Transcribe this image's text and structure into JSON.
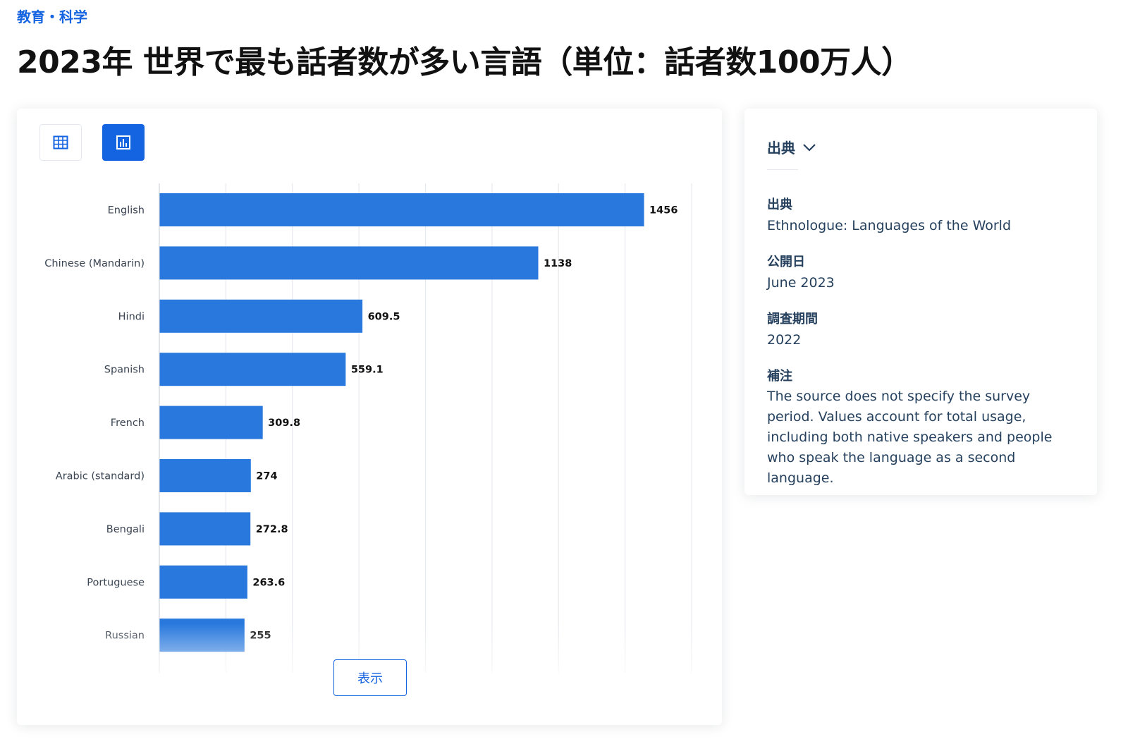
{
  "breadcrumb": {
    "category": "教育・科学"
  },
  "page": {
    "title": "2023年 世界で最も話者数が多い言語（単位：話者数100万人）"
  },
  "view_toggle": {
    "table_icon": "table-grid-icon",
    "chart_icon": "bar-chart-icon",
    "active": "chart"
  },
  "chart_data": {
    "type": "bar",
    "orientation": "horizontal",
    "categories": [
      "English",
      "Chinese (Mandarin)",
      "Hindi",
      "Spanish",
      "French",
      "Arabic (standard)",
      "Bengali",
      "Portuguese",
      "Russian"
    ],
    "values": [
      1456,
      1138,
      609.5,
      559.1,
      309.8,
      274,
      272.8,
      263.6,
      255
    ],
    "value_labels": [
      "1456",
      "1138",
      "609.5",
      "559.1",
      "309.8",
      "274",
      "272.8",
      "263.6",
      "255"
    ],
    "xlim": [
      0,
      1600
    ],
    "grid": true,
    "bar_color": "#2878dd",
    "title": "",
    "xlabel": "",
    "ylabel": ""
  },
  "show_button": {
    "label": "表示"
  },
  "source_panel": {
    "toggle_label": "出典",
    "toggle_icon": "chevron-down-icon",
    "source_label": "出典",
    "source_value": "Ethnologue: Languages of the World",
    "published_label": "公開日",
    "published_value": "June 2023",
    "survey_label": "調査期間",
    "survey_value": "2022",
    "notes_label": "補注",
    "notes_value": "The source does not specify the survey period. Values account for total usage, including both native speakers and people who speak the language as a second language."
  },
  "colors": {
    "accent": "#1463e0",
    "bar": "#2878dd",
    "text_dark": "#26415e"
  }
}
